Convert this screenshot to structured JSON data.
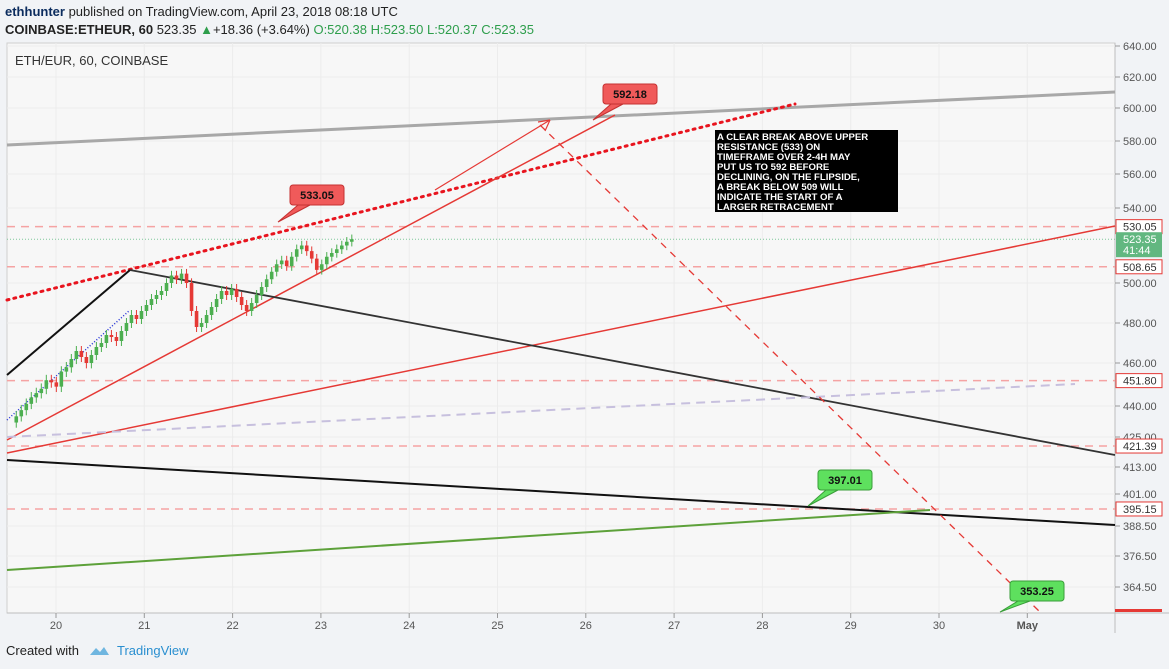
{
  "header": {
    "author": "ethhunter",
    "published_text": "published on TradingView.com, April 23, 2018 08:18 UTC",
    "symbol": "COINBASE:ETHEUR, 60",
    "last": "523.35",
    "change": "+18.36 (+3.64%)",
    "ohlc": {
      "o": "O:520.38",
      "h": "H:523.50",
      "l": "L:520.37",
      "c": "C:523.35"
    }
  },
  "chart_label": "ETH/EUR, 60, COINBASE",
  "footer": {
    "created_with": "Created with",
    "brand": "TradingView"
  },
  "colors": {
    "bull": "#4caf50",
    "bear": "#e53935",
    "accent": "#e53935",
    "green": "#6fbf4a",
    "price": "#62b780"
  },
  "chart_data": {
    "type": "line",
    "title": "ETH/EUR, 60, COINBASE",
    "x_ticks": [
      "20",
      "21",
      "22",
      "23",
      "24",
      "25",
      "26",
      "27",
      "28",
      "29",
      "30",
      "May"
    ],
    "y_ticks": [
      "640.00",
      "620.00",
      "600.00",
      "580.00",
      "560.00",
      "540.00",
      "500.00",
      "480.00",
      "460.00",
      "440.00",
      "425.00",
      "413.00",
      "401.00",
      "388.50",
      "376.50",
      "364.50"
    ],
    "ylim": [
      353,
      640
    ],
    "price_labels": [
      {
        "value": 530.05,
        "text": "530.05",
        "style": "red"
      },
      {
        "value": 523.35,
        "text": "523.35",
        "style": "green"
      },
      {
        "value": 517.5,
        "text": "41:44",
        "style": "green"
      },
      {
        "value": 508.65,
        "text": "508.65",
        "style": "red"
      },
      {
        "value": 451.8,
        "text": "451.80",
        "style": "red"
      },
      {
        "value": 421.39,
        "text": "421.39",
        "style": "red"
      },
      {
        "value": 395.15,
        "text": "395.15",
        "style": "red"
      }
    ],
    "horizontal_levels": [
      530.05,
      508.65,
      451.8,
      421.39,
      395.15
    ],
    "callouts": [
      {
        "text": "533.05",
        "style": "red"
      },
      {
        "text": "592.18",
        "style": "red"
      },
      {
        "text": "397.01",
        "style": "green"
      },
      {
        "text": "353.25",
        "style": "green"
      }
    ],
    "annotation": "A CLEAR BREAK ABOVE UPPER RESISTANCE (533) ON TIMEFRAME OVER 2-4H MAY PUT US TO 592 BEFORE DECLINING, ON THE FLIPSIDE, A BREAK BELOW 509 WILL INDICATE THE START OF A LARGER RETRACEMENT",
    "candles_close": [
      435,
      438,
      441,
      444,
      446,
      448,
      452,
      451,
      449,
      456,
      458,
      462,
      466,
      463,
      460,
      464,
      468,
      470,
      474,
      473,
      471,
      476,
      480,
      484,
      482,
      486,
      489,
      492,
      494,
      496,
      500,
      504,
      502,
      505,
      500,
      486,
      478,
      480,
      484,
      488,
      492,
      496,
      494,
      497,
      493,
      489,
      486,
      490,
      494,
      498,
      502,
      506,
      510,
      512,
      509,
      514,
      518,
      520,
      517,
      513,
      507,
      510,
      514,
      516,
      518,
      520,
      522,
      523.35
    ],
    "candle_x_start_day": 19.55,
    "candle_x_end_day": 23.35
  }
}
